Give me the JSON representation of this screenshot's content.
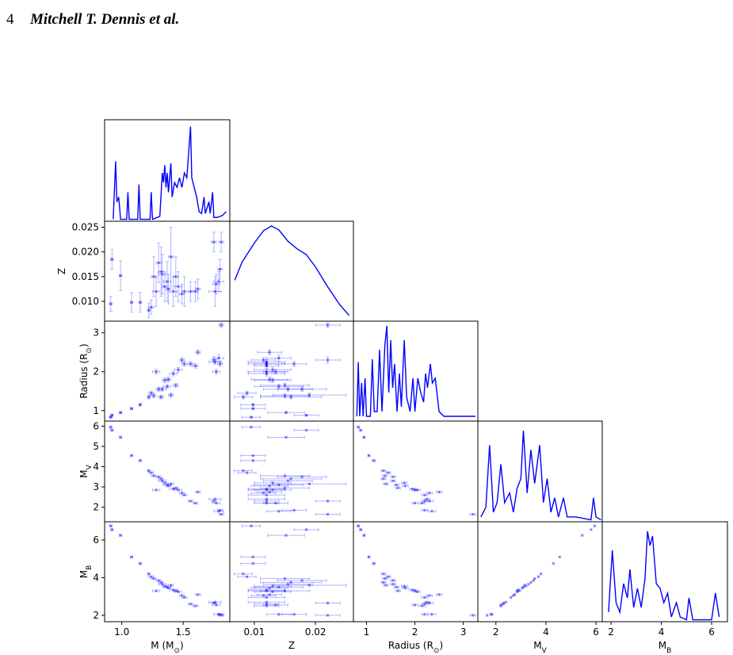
{
  "header": {
    "page": "4",
    "authors": "Mitchell T. Dennis et al."
  },
  "figure": {
    "color": "#0000ff",
    "variables": [
      {
        "label": {
          "text": "M (M",
          "sub": "⊙",
          "after": ")"
        },
        "xlim": [
          0.86,
          1.88
        ],
        "xticks": [
          {
            "value": 1.0,
            "label": "1.0"
          },
          {
            "value": 1.5,
            "label": "1.5"
          }
        ],
        "values": [
          0.91,
          0.92,
          0.99,
          1.08,
          1.15,
          1.22,
          1.24,
          1.26,
          1.28,
          1.3,
          1.32,
          1.33,
          1.35,
          1.37,
          1.38,
          1.4,
          1.42,
          1.44,
          1.46,
          1.49,
          1.51,
          1.56,
          1.6,
          1.62,
          1.75,
          1.77,
          1.79,
          1.81,
          1.8,
          1.76
        ],
        "errors": [
          0.01,
          0.01,
          0.01,
          0.01,
          0.01,
          0.01,
          0.02,
          0.02,
          0.03,
          0.02,
          0.02,
          0.03,
          0.02,
          0.03,
          0.02,
          0.02,
          0.03,
          0.02,
          0.03,
          0.02,
          0.02,
          0.02,
          0.02,
          0.02,
          0.02,
          0.03,
          0.04,
          0.02,
          0.02,
          0.05
        ],
        "kde": {
          "ylim": [
            0,
            1.05
          ],
          "x": [
            0.93,
            0.95,
            0.96,
            0.975,
            0.99,
            1.04,
            1.05,
            1.06,
            1.13,
            1.14,
            1.15,
            1.23,
            1.24,
            1.25,
            1.31,
            1.33,
            1.34,
            1.35,
            1.36,
            1.37,
            1.38,
            1.4,
            1.41,
            1.43,
            1.45,
            1.47,
            1.49,
            1.51,
            1.53,
            1.56,
            1.57,
            1.59,
            1.61,
            1.63,
            1.65,
            1.67,
            1.68,
            1.71,
            1.72,
            1.74,
            1.75,
            1.78,
            1.82,
            1.85
          ],
          "values": [
            0.02,
            0.62,
            0.2,
            0.25,
            0.02,
            0.02,
            0.3,
            0.02,
            0.02,
            0.38,
            0.02,
            0.02,
            0.3,
            0.02,
            0.05,
            0.5,
            0.4,
            0.58,
            0.35,
            0.5,
            0.3,
            0.6,
            0.25,
            0.4,
            0.35,
            0.45,
            0.35,
            0.5,
            0.45,
            0.98,
            0.45,
            0.35,
            0.25,
            0.1,
            0.08,
            0.25,
            0.08,
            0.2,
            0.08,
            0.3,
            0.04,
            0.04,
            0.06,
            0.1
          ]
        }
      },
      {
        "label": {
          "text": "Z"
        },
        "xlim": [
          0.006,
          0.0262
        ],
        "ylim": [
          0.006,
          0.0262
        ],
        "xticks": [
          0.01,
          0.02
        ],
        "yticks": [
          {
            "value": 0.01,
            "label": "0.010"
          },
          0.015,
          {
            "value": 0.02,
            "label": "0.020"
          },
          0.025
        ],
        "values": [
          0.0095,
          0.0185,
          0.0152,
          0.0098,
          0.0098,
          0.0082,
          0.0088,
          0.015,
          0.012,
          0.0178,
          0.016,
          0.0155,
          0.013,
          0.014,
          0.0125,
          0.019,
          0.012,
          0.015,
          0.013,
          0.0115,
          0.012,
          0.012,
          0.012,
          0.0125,
          0.022,
          0.0135,
          0.014,
          0.022,
          0.0165,
          0.012
        ],
        "errors": [
          0.0015,
          0.002,
          0.003,
          0.002,
          0.002,
          0.0015,
          0.0015,
          0.004,
          0.003,
          0.004,
          0.005,
          0.004,
          0.003,
          0.004,
          0.003,
          0.006,
          0.003,
          0.004,
          0.003,
          0.002,
          0.003,
          0.002,
          0.002,
          0.002,
          0.002,
          0.002,
          0.002,
          0.002,
          0.002,
          0.003
        ],
        "kde": {
          "ylim": [
            0,
            1.05
          ],
          "x": [
            0.0068,
            0.008,
            0.01,
            0.0115,
            0.0128,
            0.014,
            0.0155,
            0.017,
            0.0185,
            0.02,
            0.022,
            0.024,
            0.0255
          ],
          "values": [
            0.43,
            0.62,
            0.82,
            0.95,
            1.0,
            0.96,
            0.84,
            0.76,
            0.7,
            0.57,
            0.36,
            0.17,
            0.06
          ]
        }
      },
      {
        "label": {
          "text": "Radius (R",
          "sub": "⊙",
          "after": ")"
        },
        "xlim": [
          0.73,
          3.3
        ],
        "ylim": [
          0.73,
          3.3
        ],
        "xticks": [
          1,
          2,
          3
        ],
        "yticks": [
          1,
          2,
          3
        ],
        "values": [
          0.83,
          0.88,
          0.95,
          1.05,
          1.15,
          1.35,
          1.45,
          1.38,
          2.0,
          1.55,
          1.35,
          1.55,
          1.78,
          1.62,
          1.8,
          1.4,
          1.95,
          1.65,
          2.05,
          2.3,
          2.2,
          2.2,
          2.15,
          2.5,
          2.3,
          2.0,
          2.35,
          3.2,
          2.2,
          2.25
        ],
        "errors": [
          0.02,
          0.02,
          0.02,
          0.02,
          0.03,
          0.05,
          0.05,
          0.05,
          0.06,
          0.05,
          0.05,
          0.05,
          0.06,
          0.05,
          0.06,
          0.05,
          0.06,
          0.05,
          0.06,
          0.06,
          0.06,
          0.06,
          0.06,
          0.06,
          0.08,
          0.06,
          0.08,
          0.06,
          0.06,
          0.06
        ],
        "kde": {
          "ylim": [
            0,
            1.05
          ],
          "x": [
            0.8,
            0.83,
            0.86,
            0.9,
            0.93,
            0.97,
            1.0,
            1.08,
            1.12,
            1.16,
            1.22,
            1.27,
            1.32,
            1.38,
            1.42,
            1.46,
            1.5,
            1.54,
            1.58,
            1.63,
            1.68,
            1.72,
            1.78,
            1.83,
            1.9,
            1.96,
            2.0,
            2.06,
            2.12,
            2.18,
            2.22,
            2.26,
            2.32,
            2.36,
            2.42,
            2.5,
            2.6,
            3.25
          ],
          "values": [
            0.05,
            0.62,
            0.05,
            0.4,
            0.05,
            0.45,
            0.05,
            0.05,
            0.65,
            0.1,
            0.1,
            0.75,
            0.1,
            0.8,
            1.0,
            0.3,
            0.85,
            0.35,
            0.6,
            0.1,
            0.5,
            0.15,
            0.85,
            0.25,
            0.1,
            0.45,
            0.1,
            0.45,
            0.3,
            0.2,
            0.5,
            0.35,
            0.6,
            0.4,
            0.45,
            0.1,
            0.05,
            0.05
          ]
        }
      },
      {
        "label": {
          "text": "M",
          "sub": "V"
        },
        "xlim": [
          1.28,
          6.25
        ],
        "ylim": [
          1.28,
          6.25
        ],
        "xticks": [
          2,
          4,
          6
        ],
        "yticks": [
          2,
          3,
          4,
          5,
          6
        ],
        "values": [
          5.95,
          5.8,
          5.45,
          4.55,
          4.3,
          3.8,
          3.7,
          3.55,
          2.85,
          3.5,
          3.4,
          3.3,
          3.2,
          3.1,
          3.05,
          3.15,
          2.9,
          2.95,
          2.85,
          2.7,
          2.6,
          2.3,
          2.2,
          2.75,
          2.3,
          2.2,
          1.8,
          1.65,
          1.85,
          2.4
        ],
        "kde": {
          "ylim": [
            0,
            1.05
          ],
          "x": [
            1.4,
            1.6,
            1.75,
            1.9,
            2.05,
            2.2,
            2.35,
            2.55,
            2.7,
            2.85,
            3.0,
            3.1,
            3.25,
            3.4,
            3.55,
            3.75,
            3.9,
            4.05,
            4.2,
            4.35,
            4.5,
            4.7,
            4.85,
            5.2,
            5.8,
            5.9,
            6.0,
            6.2
          ],
          "values": [
            0.05,
            0.15,
            0.8,
            0.1,
            0.2,
            0.6,
            0.2,
            0.3,
            0.1,
            0.35,
            0.45,
            0.95,
            0.3,
            0.75,
            0.4,
            0.8,
            0.2,
            0.45,
            0.1,
            0.25,
            0.05,
            0.25,
            0.05,
            0.05,
            0.02,
            0.25,
            0.05,
            0.02
          ]
        }
      },
      {
        "label": {
          "text": "M",
          "sub": "B"
        },
        "xlim": [
          1.65,
          6.63
        ],
        "ylim": [
          1.66,
          6.97
        ],
        "xticks": [
          2,
          4,
          6
        ],
        "yticks": [
          2,
          4,
          6
        ],
        "values": [
          6.75,
          6.55,
          6.25,
          5.1,
          4.75,
          4.2,
          4.05,
          3.95,
          3.3,
          3.85,
          3.75,
          3.65,
          3.55,
          3.5,
          3.45,
          3.6,
          3.35,
          3.3,
          3.25,
          3.05,
          2.95,
          2.6,
          2.5,
          3.1,
          2.65,
          2.55,
          2.05,
          2.0,
          2.05,
          2.7
        ],
        "kde": {
          "ylim": [
            0,
            1.05
          ],
          "x": [
            1.9,
            2.05,
            2.2,
            2.35,
            2.5,
            2.65,
            2.75,
            2.9,
            3.05,
            3.2,
            3.35,
            3.45,
            3.55,
            3.65,
            3.8,
            3.95,
            4.1,
            4.25,
            4.4,
            4.6,
            4.75,
            5.0,
            5.1,
            5.25,
            6.0,
            6.15,
            6.3
          ],
          "values": [
            0.1,
            0.75,
            0.2,
            0.1,
            0.4,
            0.25,
            0.55,
            0.15,
            0.35,
            0.15,
            0.45,
            0.95,
            0.8,
            0.9,
            0.4,
            0.35,
            0.2,
            0.3,
            0.05,
            0.2,
            0.05,
            0.02,
            0.25,
            0.02,
            0.02,
            0.3,
            0.05
          ]
        }
      }
    ]
  }
}
